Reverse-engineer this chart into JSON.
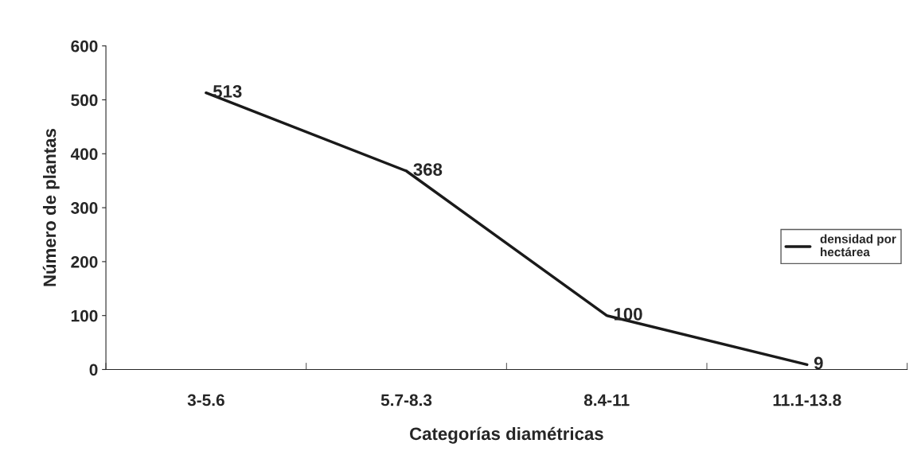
{
  "chart_data": {
    "type": "line",
    "xlabel": "Categorías diamétricas",
    "ylabel": "Número de plantas",
    "categories": [
      "3-5.6",
      "5.7-8.3",
      "8.4-11",
      "11.1-13.8"
    ],
    "series": [
      {
        "name": "densidad por\nhectárea",
        "color": "#1a1a1a",
        "values": [
          513,
          368,
          100,
          9
        ]
      }
    ],
    "ylim": [
      0,
      600
    ],
    "yticks": [
      0,
      100,
      200,
      300,
      400,
      500,
      600
    ],
    "data_labels": true,
    "grid": false,
    "legend": "right",
    "marker": "none",
    "line_style": "solid"
  }
}
